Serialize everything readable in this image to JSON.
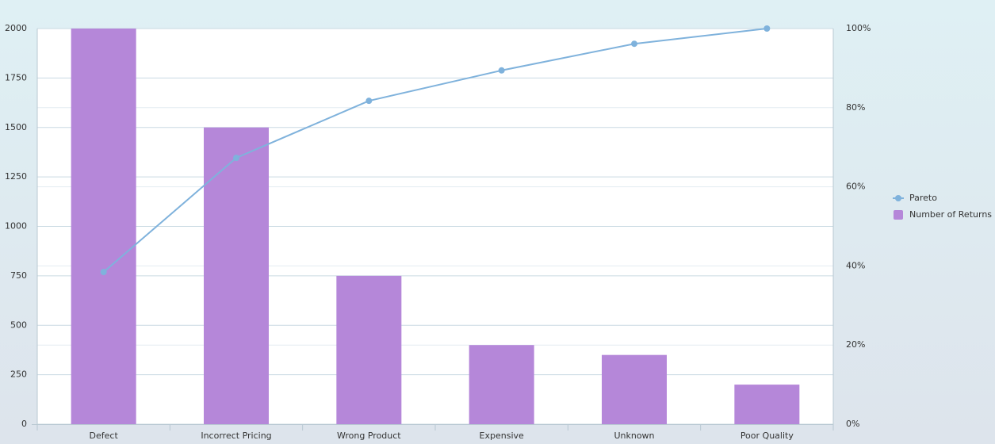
{
  "chart_data": {
    "type": "pareto",
    "categories": [
      "Defect",
      "Incorrect Pricing",
      "Wrong Product",
      "Expensive",
      "Unknown",
      "Poor Quality"
    ],
    "series": [
      {
        "name": "Number of Returns",
        "type": "bar",
        "color": "#b587d9",
        "values": [
          2000,
          1500,
          750,
          400,
          350,
          200
        ]
      },
      {
        "name": "Pareto",
        "type": "line",
        "axis": "y2",
        "color": "#7fb2dc",
        "values": [
          38.46,
          67.31,
          81.73,
          89.42,
          96.15,
          100
        ]
      }
    ],
    "ylim": [
      0,
      2000
    ],
    "yticks": [
      0,
      250,
      500,
      750,
      1000,
      1250,
      1500,
      1750,
      2000
    ],
    "y2lim": [
      0,
      100
    ],
    "y2ticks": [
      {
        "value": 0,
        "label": "0%"
      },
      {
        "value": 20,
        "label": "20%"
      },
      {
        "value": 40,
        "label": "40%"
      },
      {
        "value": 60,
        "label": "60%"
      },
      {
        "value": 80,
        "label": "80%"
      },
      {
        "value": 100,
        "label": "100%"
      }
    ],
    "grid": true,
    "legend": "right"
  }
}
